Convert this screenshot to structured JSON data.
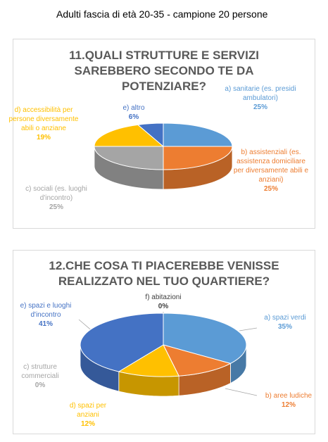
{
  "header": {
    "title": "Adulti fascia di età 20-35 - campione 20 persone"
  },
  "chart_data": [
    {
      "type": "pie",
      "title": "11.QUALI STRUTTURE E SERVIZI SAREBBERO SECONDO TE DA POTENZIARE?",
      "categories": [
        "a) sanitarie (es. presidi ambulatori)",
        "b) assistenziali (es. assistenza domiciliare per diversamente abili e anziani)",
        "c) sociali (es. luoghi d'incontro)",
        "d) accessibilità per persone diversamente abili o anziane",
        "e) altro"
      ],
      "values": [
        25,
        25,
        25,
        19,
        6
      ],
      "value_labels": [
        "25%",
        "25%",
        "25%",
        "19%",
        "6%"
      ],
      "colors": [
        "#5b9bd5",
        "#ed7d31",
        "#a5a5a5",
        "#ffc000",
        "#4472c4"
      ]
    },
    {
      "type": "pie",
      "title": "12.CHE COSA TI PIACEREBBE VENISSE REALIZZATO NEL TUO QUARTIERE?",
      "categories": [
        "a) spazi verdi",
        "b) aree ludiche",
        "c) strutture commerciali",
        "d) spazi per anziani",
        "e) spazi e luoghi d'incontro",
        "f) abitazioni"
      ],
      "values": [
        35,
        12,
        0,
        12,
        41,
        0
      ],
      "value_labels": [
        "35%",
        "12%",
        "0%",
        "12%",
        "41%",
        "0%"
      ],
      "colors": [
        "#5b9bd5",
        "#ed7d31",
        "#a5a5a5",
        "#ffc000",
        "#4472c4",
        "#404040"
      ]
    }
  ]
}
